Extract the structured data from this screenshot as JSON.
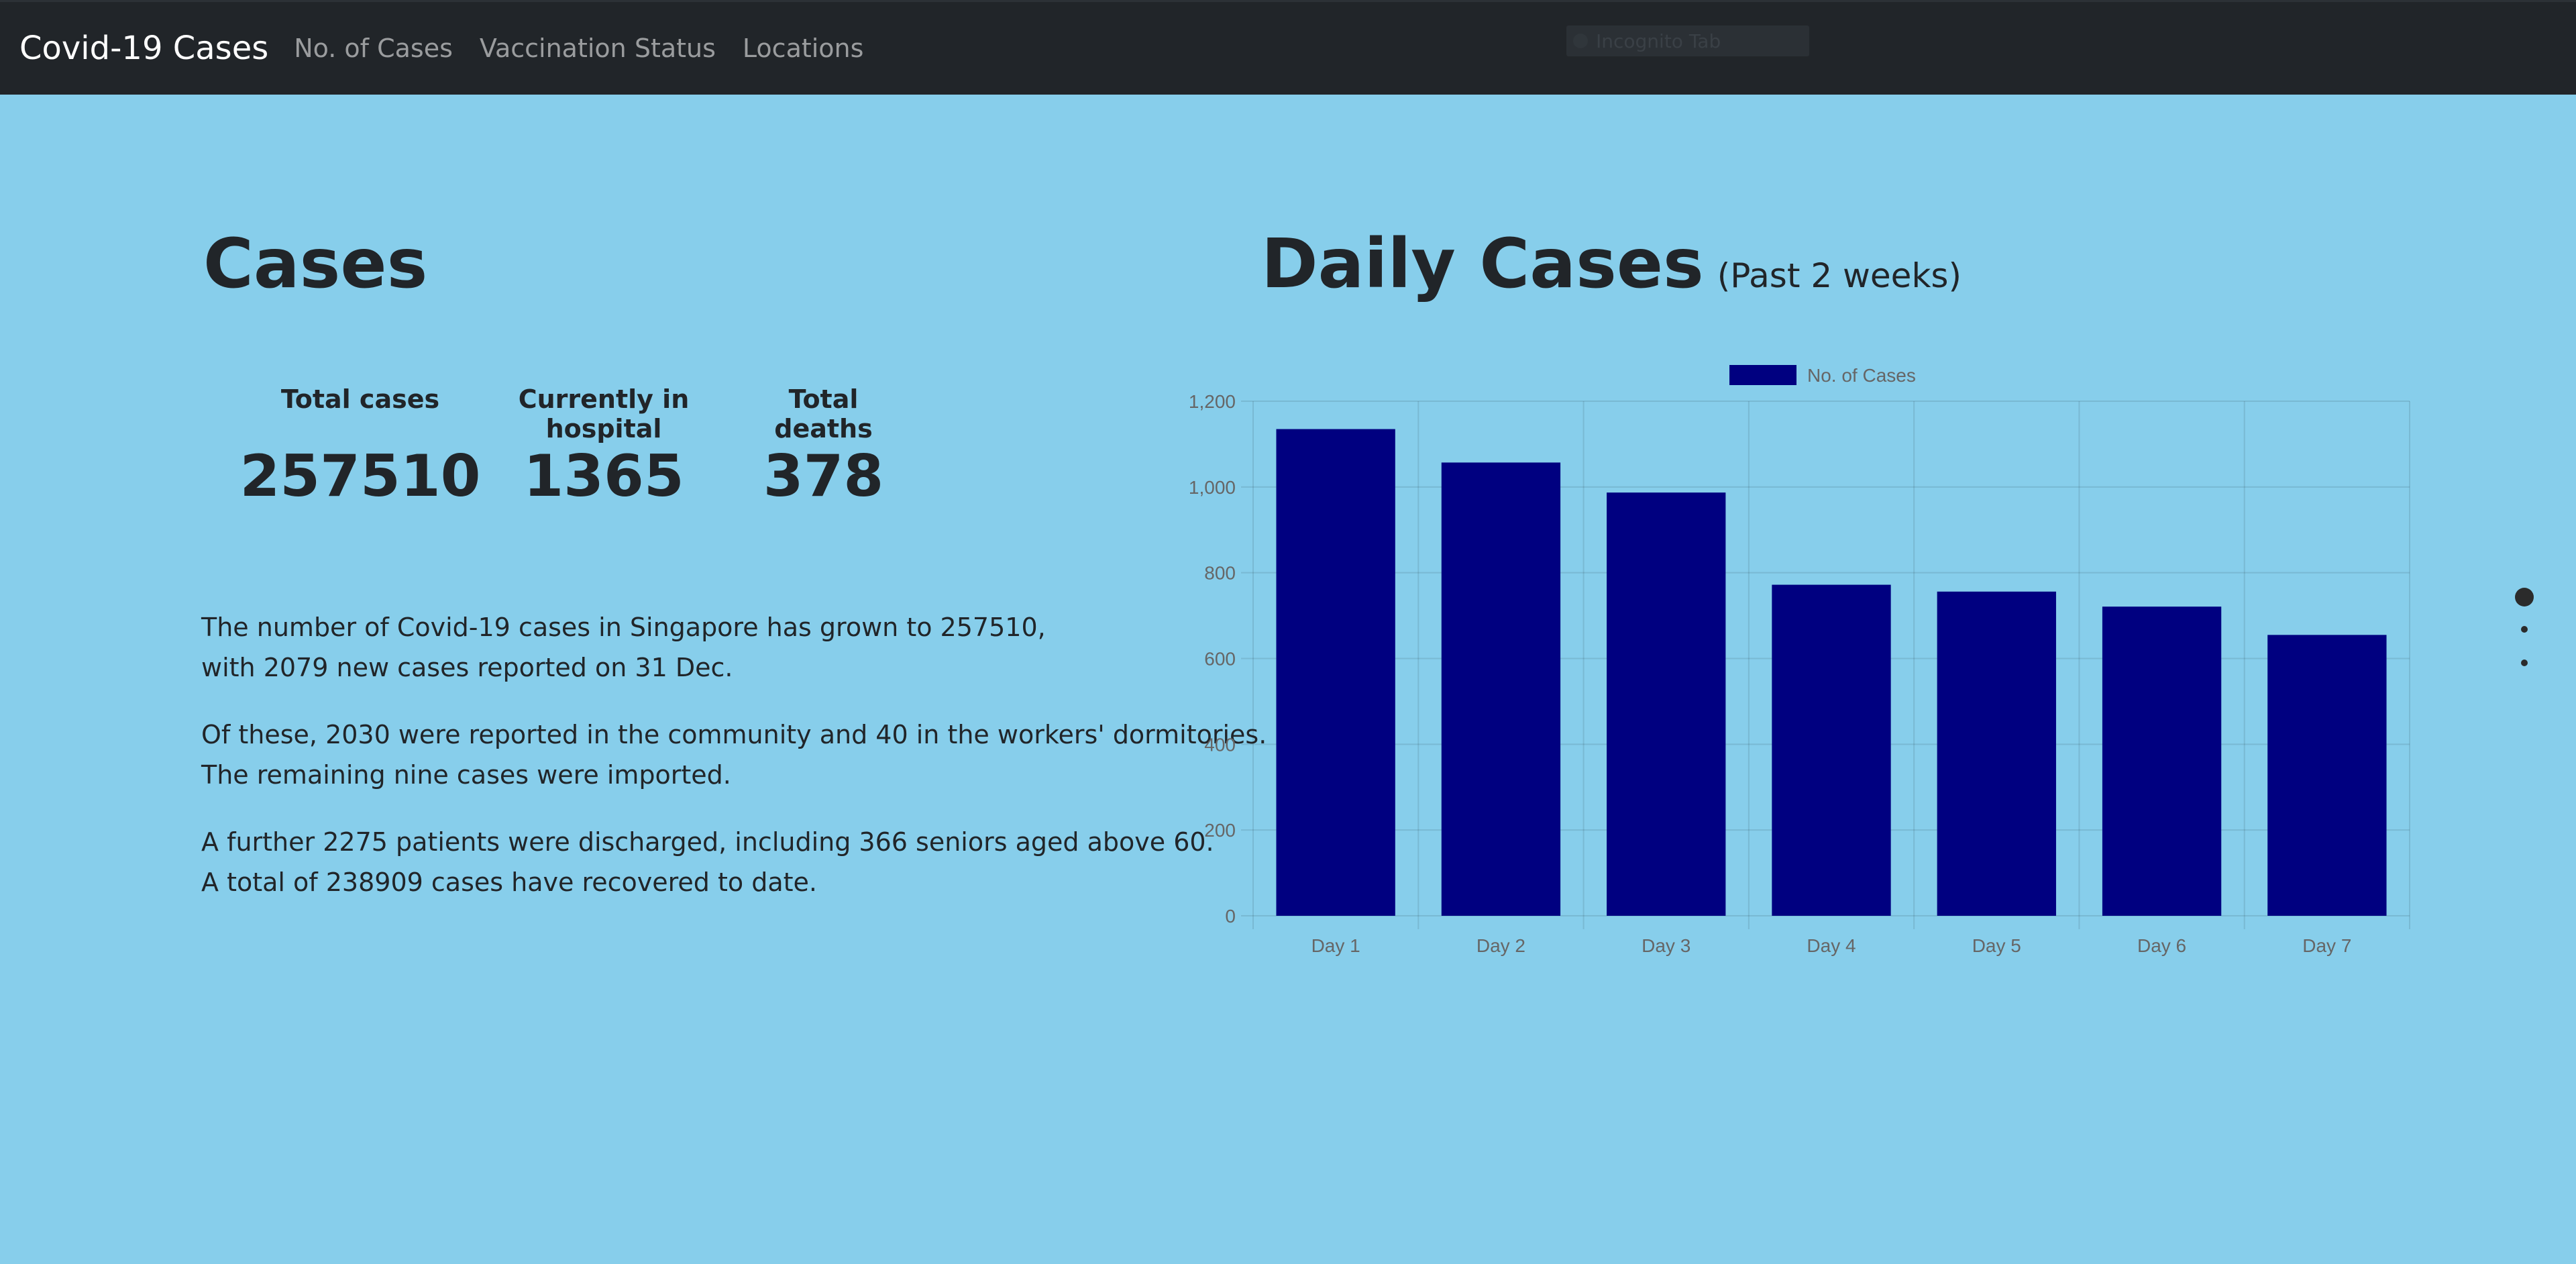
{
  "nav": {
    "brand": "Covid-19 Cases",
    "links": [
      "No. of Cases",
      "Vaccination Status",
      "Locations"
    ],
    "widget_text": "Incognito Tab"
  },
  "cases": {
    "title": "Cases",
    "stats": [
      {
        "label": "Total cases",
        "value": "257510"
      },
      {
        "label": "Currently in hospital",
        "value": "1365"
      },
      {
        "label": "Total deaths",
        "value": "378"
      }
    ],
    "paragraphs": [
      [
        "The number of Covid-19 cases in Singapore has grown to 257510,",
        "with 2079 new cases reported on 31 Dec."
      ],
      [
        "Of these, 2030 were reported in the community and 40 in the workers' dormitories.",
        "The remaining nine cases were imported."
      ],
      [
        "A further 2275 patients were discharged, including 366 seniors aged above 60.",
        "A total of 238909 cases have recovered to date."
      ]
    ]
  },
  "daily": {
    "title": "Daily Cases",
    "subtitle": "(Past 2 weeks)"
  },
  "chart_data": {
    "type": "bar",
    "categories": [
      "Day 1",
      "Day 2",
      "Day 3",
      "Day 4",
      "Day 5",
      "Day 6",
      "Day 7"
    ],
    "series": [
      {
        "name": "No. of Cases",
        "values": [
          1135,
          1057,
          987,
          772,
          756,
          721,
          655
        ],
        "color": "#000080"
      }
    ],
    "yticks": [
      "0",
      "200",
      "400",
      "600",
      "800",
      "1,000",
      "1,200"
    ],
    "ylim": [
      0,
      1200
    ],
    "grid": true,
    "legend": "top-center"
  }
}
